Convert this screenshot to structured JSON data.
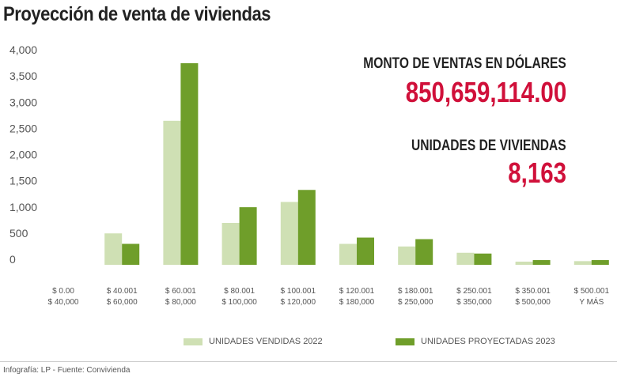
{
  "title": "Proyección de venta de viviendas",
  "kpis": {
    "amount_label": "MONTO DE VENTAS EN DÓLARES",
    "amount_value": "850,659,114.00",
    "units_label": "UNIDADES DE VIVIENDAS",
    "units_value": "8,163"
  },
  "footer": "Infografía: LP - Fuente: Conviviendа",
  "colors": {
    "light": "#cfe0b4",
    "dark": "#6f9e2a",
    "accent": "#d0103a"
  },
  "chart_data": {
    "type": "bar",
    "categories": [
      [
        "$ 0.00",
        "$ 40,000"
      ],
      [
        "$ 40.001",
        "$ 60,000"
      ],
      [
        "$ 60.001",
        "$ 80,000"
      ],
      [
        "$ 80.001",
        "$ 100,000"
      ],
      [
        "$ 100.001",
        "$ 120,000"
      ],
      [
        "$ 120.001",
        "$ 180,000"
      ],
      [
        "$ 180.001",
        "$ 250,000"
      ],
      [
        "$ 250.001",
        "$ 350,000"
      ],
      [
        "$ 350.001",
        "$ 500,000"
      ],
      [
        "$ 500.001",
        "Y MÁS"
      ]
    ],
    "series": [
      {
        "name": "UNIDADES VENDIDAS 2022",
        "values": [
          0,
          600,
          2750,
          800,
          1200,
          400,
          350,
          230,
          60,
          70
        ]
      },
      {
        "name": "UNIDADES PROYECTADAS 2023",
        "values": [
          0,
          400,
          3850,
          1100,
          1430,
          520,
          490,
          215,
          90,
          90
        ]
      }
    ],
    "yticks": [
      "0",
      "500",
      "1,000",
      "1,500",
      "2,000",
      "2,500",
      "3,000",
      "3,500",
      "4,000"
    ],
    "ylim": [
      0,
      4000
    ],
    "grid": false,
    "legend": "bottom"
  }
}
